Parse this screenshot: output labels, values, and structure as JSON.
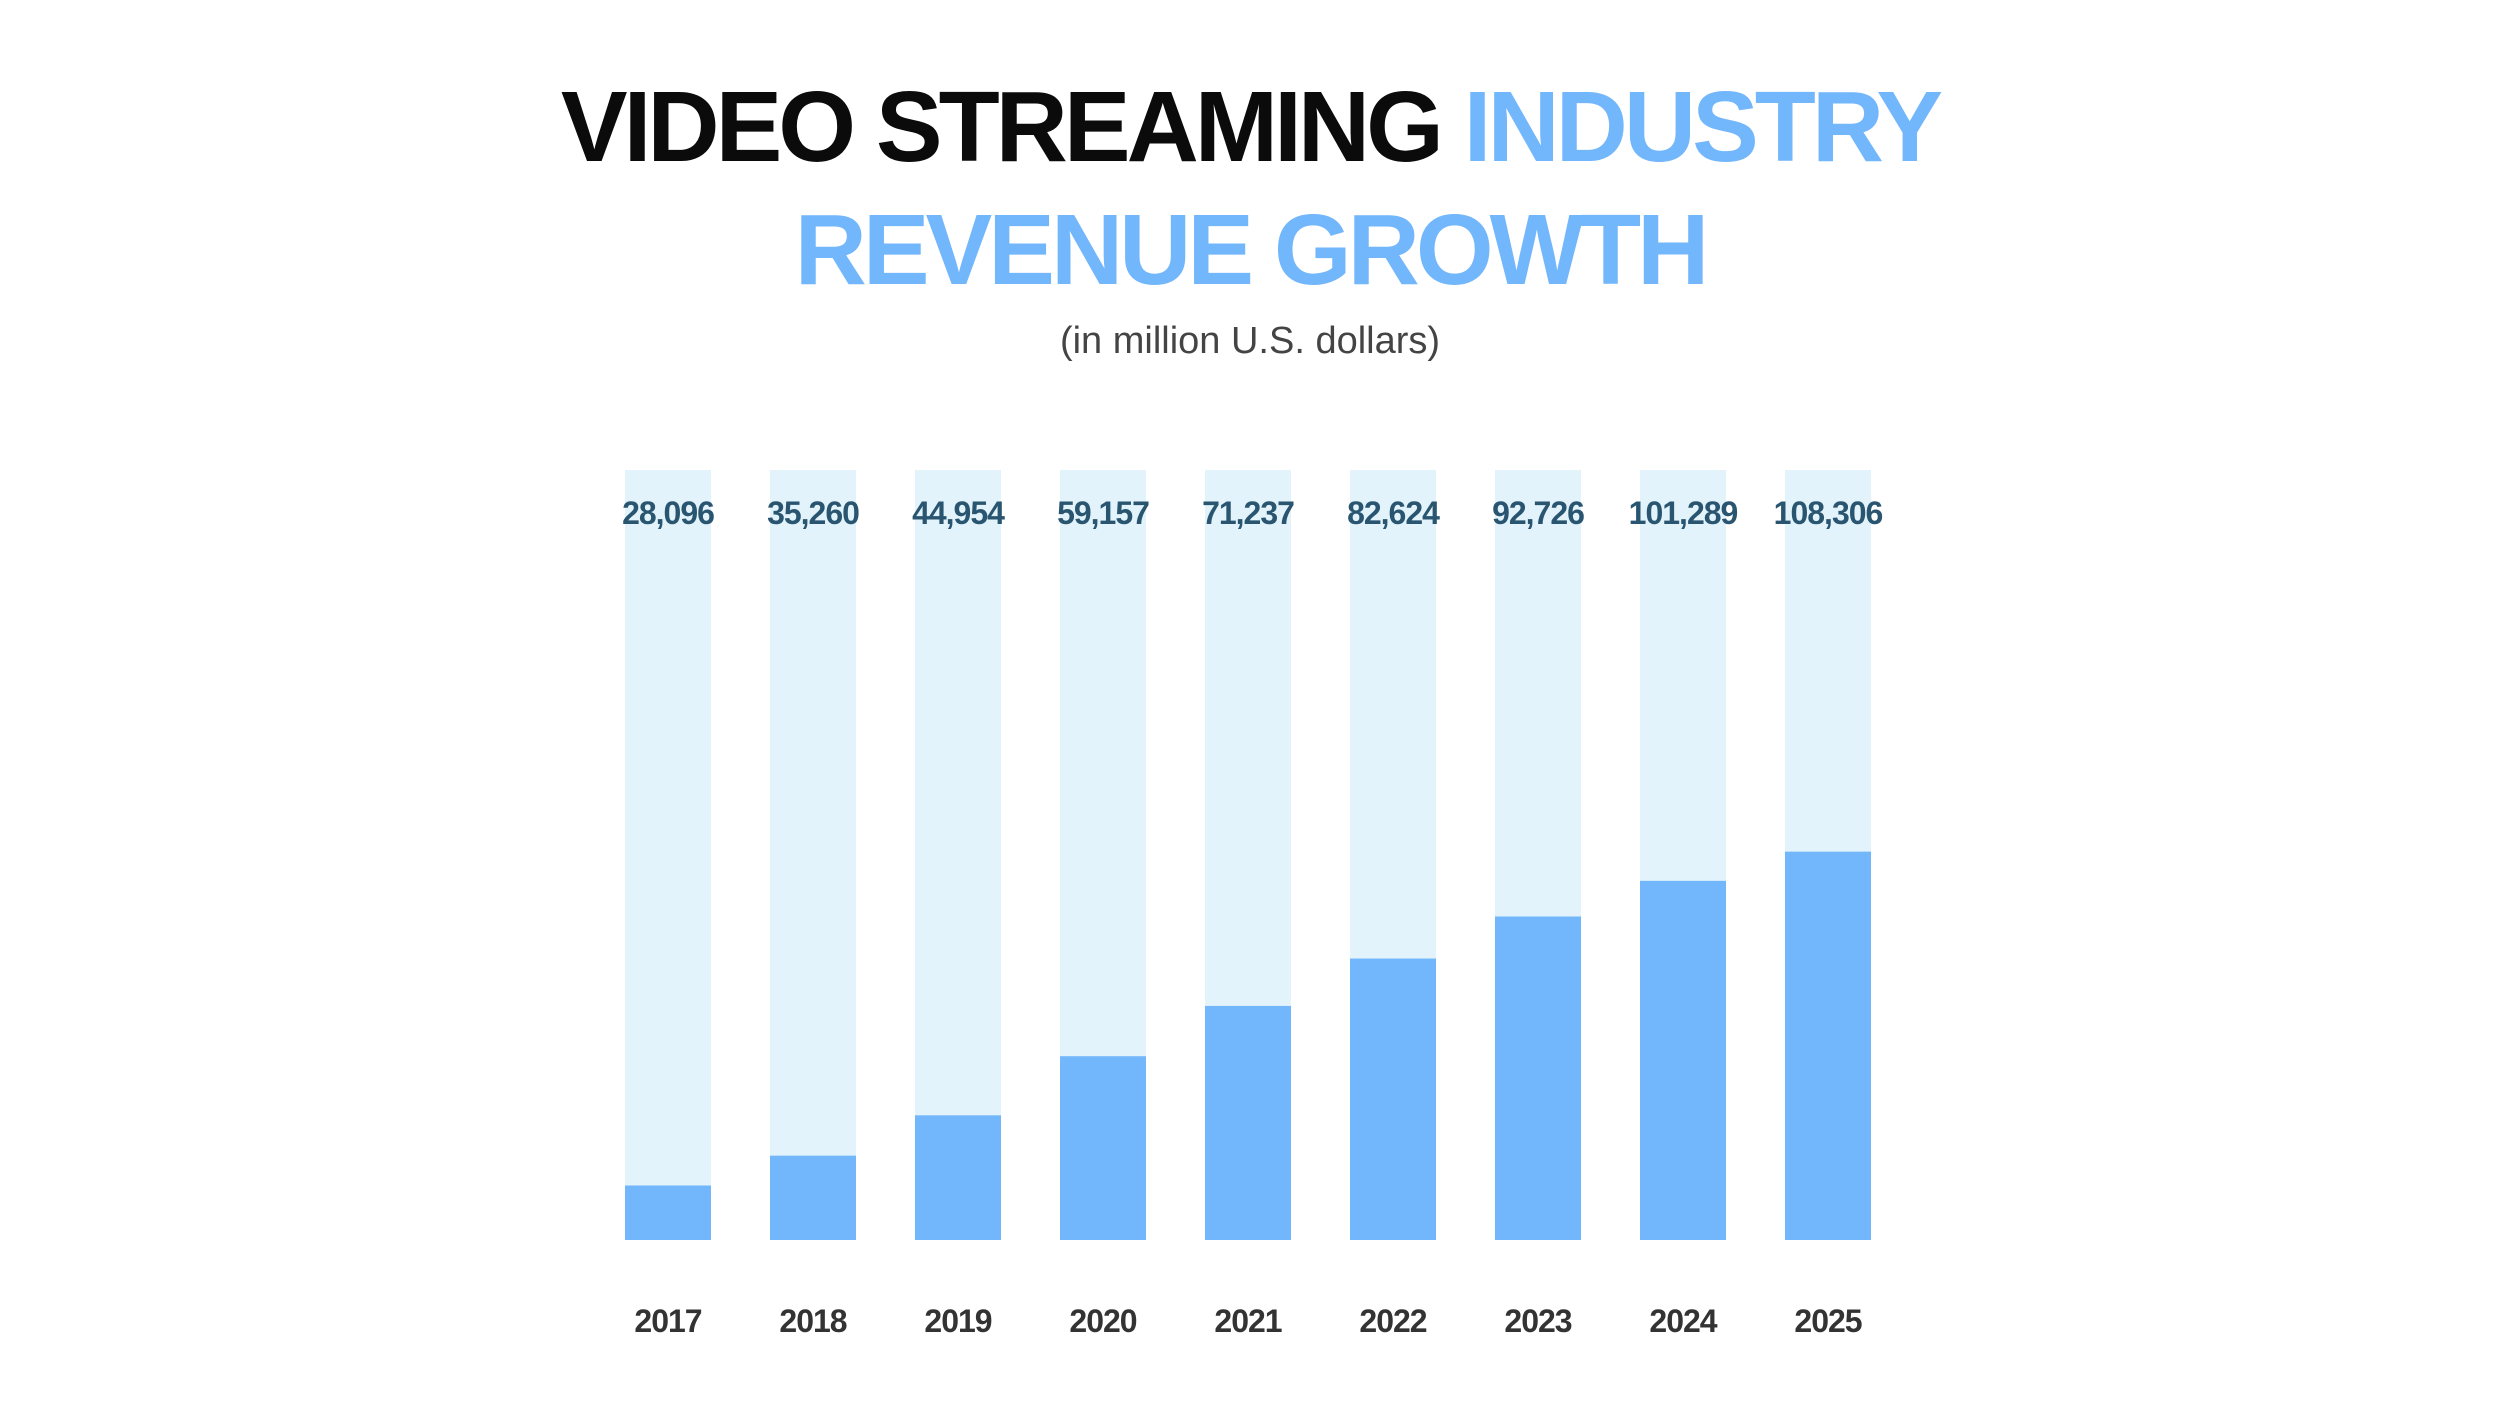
{
  "title": {
    "part1": "VIDEO STREAMING ",
    "part2": "INDUSTRY",
    "line2": "REVENUE GROWTH"
  },
  "subtitle": "(in million U.S. dollars)",
  "colors": {
    "title_dark": "#0b0b0b",
    "accent_blue": "#72b6fc",
    "bar_track": "#e2f3fb",
    "bar_fill": "#72b6fc",
    "value_text": "#2a5570",
    "year_text": "#333333"
  },
  "chart_data": {
    "type": "bar",
    "categories": [
      "2017",
      "2018",
      "2019",
      "2020",
      "2021",
      "2022",
      "2023",
      "2024",
      "2025"
    ],
    "values": [
      28096,
      35260,
      44954,
      59157,
      71237,
      82624,
      92726,
      101289,
      108306
    ],
    "value_labels": [
      "28,096",
      "35,260",
      "44,954",
      "59,157",
      "71,237",
      "82,624",
      "92,726",
      "101,289",
      "108,306"
    ],
    "title": "VIDEO STREAMING INDUSTRY REVENUE GROWTH",
    "subtitle": "(in million U.S. dollars)",
    "xlabel": "",
    "ylabel": "",
    "ylim": [
      15000,
      200000
    ],
    "grid": false,
    "legend": "none"
  }
}
